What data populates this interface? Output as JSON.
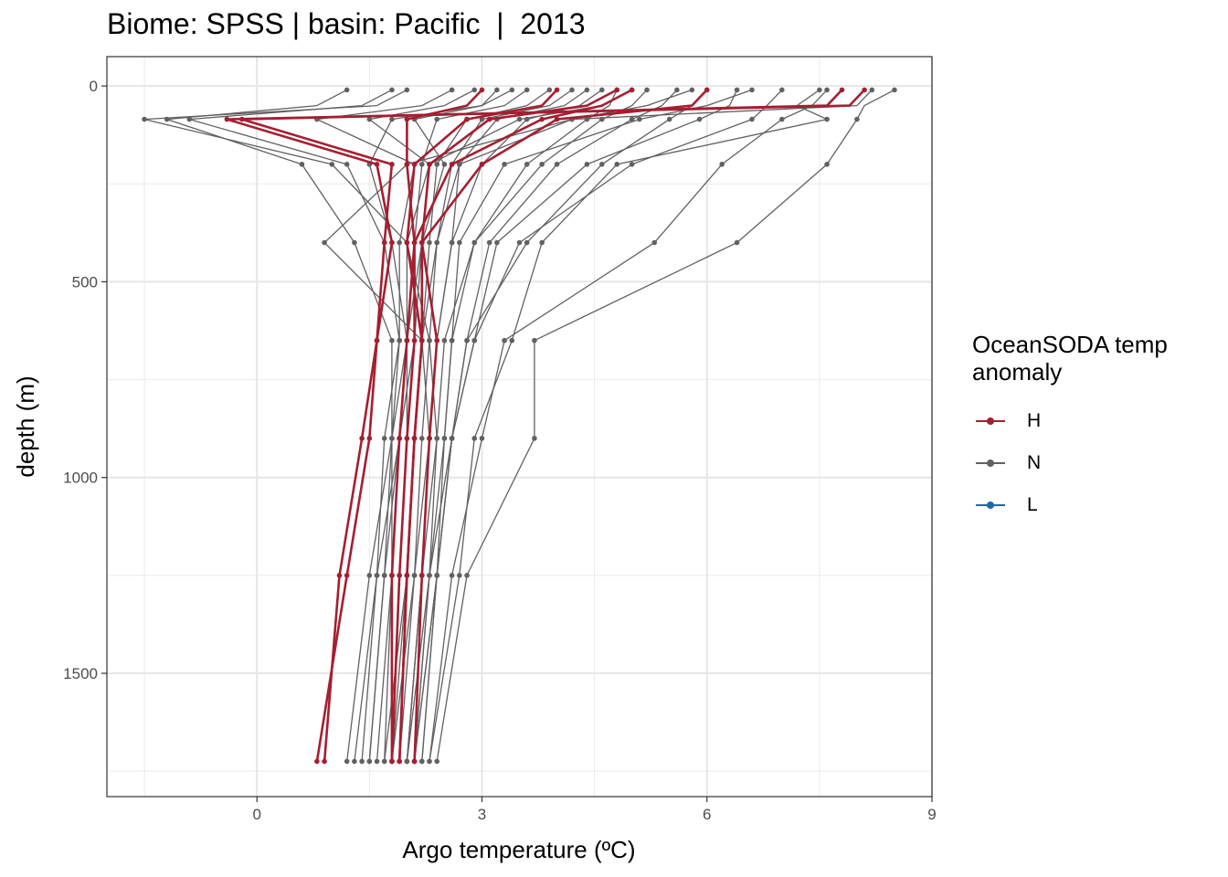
{
  "chart_data": {
    "type": "line",
    "title": "Biome: SPSS | basin: Pacific  |  2013",
    "xlabel": "Argo temperature (ºC)",
    "ylabel": "depth (m)",
    "xlim": [
      -2.0,
      9.0
    ],
    "ylim": [
      1815,
      -75
    ],
    "y_reversed": true,
    "x_ticks": [
      0,
      3,
      6,
      9
    ],
    "y_ticks": [
      0,
      500,
      1000,
      1500
    ],
    "grid": true,
    "legend": {
      "title": "OceanSODA temp anomaly",
      "position": "right",
      "entries": [
        {
          "label": "H",
          "color": "#a51e31"
        },
        {
          "label": "N",
          "color": "#616161"
        },
        {
          "label": "L",
          "color": "#2166ac"
        }
      ]
    },
    "depth_levels": [
      10,
      50,
      85,
      200,
      400,
      650,
      900,
      1250,
      1725
    ],
    "series": [
      {
        "group": "N",
        "color": "#616161",
        "profiles": [
          [
            8.2,
            8.0,
            4.2,
            2.7,
            2.4,
            2.3,
            2.2,
            2.1,
            1.8
          ],
          [
            8.5,
            8.1,
            8.0,
            7.6,
            6.4,
            3.7,
            3.7,
            2.8,
            2.4
          ],
          [
            7.6,
            7.4,
            7.0,
            6.2,
            5.3,
            3.3,
            3.0,
            2.6,
            2.3
          ],
          [
            7.5,
            7.2,
            7.6,
            4.8,
            3.8,
            3.4,
            2.9,
            2.7,
            2.3
          ],
          [
            7.0,
            6.8,
            6.6,
            5.0,
            3.5,
            2.9,
            2.6,
            2.4,
            2.2
          ],
          [
            6.4,
            6.3,
            5.9,
            4.4,
            3.2,
            2.9,
            2.6,
            2.4,
            2.1
          ],
          [
            6.0,
            5.8,
            5.5,
            4.6,
            3.6,
            2.8,
            2.6,
            2.3,
            2.0
          ],
          [
            5.6,
            5.4,
            5.0,
            4.0,
            3.1,
            2.8,
            2.6,
            2.4,
            2.1
          ],
          [
            5.2,
            5.0,
            4.6,
            3.8,
            2.9,
            2.5,
            2.4,
            2.2,
            2.0
          ],
          [
            4.8,
            4.7,
            4.4,
            3.6,
            2.9,
            2.6,
            2.5,
            2.3,
            2.1
          ],
          [
            4.6,
            4.3,
            3.6,
            3.0,
            2.6,
            2.4,
            2.3,
            2.1,
            1.9
          ],
          [
            4.4,
            4.1,
            3.2,
            2.7,
            2.6,
            2.4,
            2.3,
            2.2,
            2.0
          ],
          [
            4.2,
            3.9,
            3.0,
            2.6,
            2.4,
            2.2,
            2.1,
            2.0,
            1.8
          ],
          [
            3.9,
            3.6,
            2.8,
            2.4,
            2.3,
            2.2,
            2.1,
            2.0,
            1.7
          ],
          [
            3.6,
            3.3,
            2.4,
            2.2,
            2.1,
            2.0,
            1.9,
            1.7,
            1.5
          ],
          [
            3.2,
            3.0,
            2.1,
            2.5,
            2.2,
            2.1,
            1.9,
            1.6,
            1.3
          ],
          [
            2.9,
            2.5,
            1.5,
            2.3,
            2.2,
            2.0,
            1.8,
            1.5,
            1.2
          ],
          [
            2.6,
            2.2,
            0.8,
            2.1,
            1.9,
            1.9,
            1.7,
            1.6,
            1.4
          ],
          [
            2.0,
            1.6,
            -1.5,
            1.0,
            2.0,
            2.0,
            1.9,
            1.8,
            1.6
          ],
          [
            1.8,
            1.4,
            -0.9,
            1.2,
            1.7,
            1.9,
            1.8,
            1.7,
            1.5
          ],
          [
            1.2,
            0.8,
            -1.2,
            0.6,
            1.3,
            1.8,
            1.8,
            1.8,
            1.7
          ],
          [
            5.0,
            4.6,
            3.5,
            2.3,
            2.0,
            2.3,
            2.4,
            2.3,
            2.1
          ],
          [
            5.8,
            5.2,
            4.2,
            2.0,
            0.9,
            2.2,
            2.3,
            2.2,
            2.0
          ],
          [
            6.6,
            6.0,
            5.1,
            3.3,
            2.7,
            2.6,
            2.5,
            2.4,
            2.2
          ],
          [
            3.4,
            3.0,
            1.8,
            1.5,
            1.8,
            2.0,
            2.0,
            1.9,
            1.8
          ]
        ]
      },
      {
        "group": "H",
        "color": "#a51e31",
        "profiles": [
          [
            8.1,
            7.9,
            -0.4,
            1.6,
            1.8,
            1.6,
            1.5,
            1.2,
            0.8
          ],
          [
            7.8,
            7.6,
            -0.2,
            1.8,
            1.7,
            1.6,
            1.4,
            1.1,
            0.9
          ],
          [
            6.0,
            5.8,
            4.0,
            3.0,
            2.2,
            2.2,
            2.1,
            2.0,
            1.9
          ],
          [
            5.0,
            4.6,
            3.8,
            2.6,
            2.1,
            2.0,
            1.9,
            1.8,
            1.8
          ],
          [
            4.8,
            4.4,
            3.1,
            2.3,
            2.2,
            2.4,
            2.3,
            2.2,
            2.1
          ],
          [
            4.0,
            3.8,
            2.8,
            2.1,
            2.0,
            2.2,
            2.1,
            2.0,
            1.9
          ],
          [
            3.0,
            2.8,
            2.0,
            2.0,
            2.1,
            2.1,
            2.0,
            1.9,
            1.8
          ]
        ]
      },
      {
        "group": "L",
        "color": "#2166ac",
        "profiles": []
      }
    ]
  }
}
